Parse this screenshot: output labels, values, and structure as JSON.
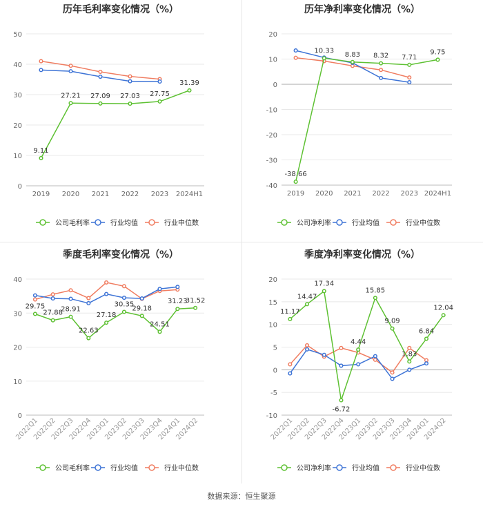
{
  "footer": {
    "source": "数据来源：恒生聚源"
  },
  "colors": {
    "company": "#5ec133",
    "industry_avg": "#3e74d6",
    "industry_median": "#f07d61"
  },
  "chart_data": [
    {
      "id": "annual-gross",
      "type": "line",
      "title": "历年毛利率变化情况（%）",
      "categories": [
        "2019",
        "2020",
        "2021",
        "2022",
        "2023",
        "2024H1"
      ],
      "ylim": [
        0,
        50
      ],
      "yticks": [
        0,
        10,
        20,
        30,
        40,
        50
      ],
      "series": [
        {
          "name": "公司毛利率",
          "values": [
            9.11,
            27.21,
            27.09,
            27.03,
            27.75,
            31.39
          ],
          "labels": [
            "9.11",
            "27.21",
            "27.09",
            "27.03",
            "27.75",
            "31.39"
          ]
        },
        {
          "name": "行业均值",
          "values": [
            38.1,
            37.7,
            35.9,
            34.4,
            34.3,
            null
          ]
        },
        {
          "name": "行业中位数",
          "values": [
            41.0,
            39.5,
            37.5,
            36.0,
            35.1,
            null
          ]
        }
      ]
    },
    {
      "id": "annual-net",
      "type": "line",
      "title": "历年净利率变化情况（%）",
      "categories": [
        "2019",
        "2020",
        "2021",
        "2022",
        "2023",
        "2024H1"
      ],
      "ylim": [
        -40,
        20
      ],
      "yticks": [
        -40,
        -30,
        -20,
        -10,
        0,
        10,
        20
      ],
      "series": [
        {
          "name": "公司净利率",
          "values": [
            -38.66,
            10.33,
            8.83,
            8.32,
            7.71,
            9.75
          ],
          "labels": [
            "-38.66",
            "10.33",
            "8.83",
            "8.32",
            "7.71",
            "9.75"
          ]
        },
        {
          "name": "行业均值",
          "values": [
            13.4,
            10.6,
            8.5,
            2.5,
            0.8,
            null
          ]
        },
        {
          "name": "行业中位数",
          "values": [
            10.5,
            9.2,
            7.3,
            5.7,
            2.7,
            null
          ]
        }
      ]
    },
    {
      "id": "quarterly-gross",
      "type": "line",
      "title": "季度毛利率变化情况（%）",
      "categories": [
        "2022Q1",
        "2022Q2",
        "2022Q3",
        "2022Q4",
        "2023Q1",
        "2023Q2",
        "2023Q3",
        "2023Q4",
        "2024Q1",
        "2024Q2"
      ],
      "ylim": [
        0,
        40
      ],
      "yticks": [
        0,
        10,
        20,
        30,
        40
      ],
      "series": [
        {
          "name": "公司毛利率",
          "values": [
            29.75,
            27.88,
            28.91,
            22.63,
            27.18,
            30.35,
            29.18,
            24.51,
            31.23,
            31.52
          ],
          "labels": [
            "29.75",
            "27.88",
            "28.91",
            "22.63",
            "27.18",
            "30.35",
            "29.18",
            "24.51",
            "31.23",
            "31.52"
          ]
        },
        {
          "name": "行业均值",
          "values": [
            35.2,
            34.3,
            34.2,
            32.9,
            35.6,
            34.5,
            34.3,
            37.1,
            37.7,
            null
          ]
        },
        {
          "name": "行业中位数",
          "values": [
            34.0,
            35.5,
            36.7,
            34.4,
            39.0,
            37.9,
            34.2,
            36.5,
            36.9,
            null
          ]
        }
      ]
    },
    {
      "id": "quarterly-net",
      "type": "line",
      "title": "季度净利率变化情况（%）",
      "categories": [
        "2022Q1",
        "2022Q2",
        "2022Q3",
        "2022Q4",
        "2023Q1",
        "2023Q2",
        "2023Q3",
        "2023Q4",
        "2024Q1",
        "2024Q2"
      ],
      "ylim": [
        -10,
        20
      ],
      "yticks": [
        -10,
        -5,
        0,
        5,
        10,
        15,
        20
      ],
      "series": [
        {
          "name": "公司净利率",
          "values": [
            11.17,
            14.47,
            17.34,
            -6.72,
            4.44,
            15.85,
            9.09,
            1.83,
            6.84,
            12.04
          ],
          "labels": [
            "11.17",
            "14.47",
            "17.34",
            "-6.72",
            "4.44",
            "15.85",
            "9.09",
            "1.83",
            "6.84",
            "12.04"
          ]
        },
        {
          "name": "行业均值",
          "values": [
            -0.8,
            4.5,
            3.3,
            0.9,
            1.2,
            3.0,
            -2.0,
            0.0,
            1.4,
            null
          ]
        },
        {
          "name": "行业中位数",
          "values": [
            1.2,
            5.4,
            2.9,
            4.8,
            3.8,
            2.2,
            -0.6,
            4.8,
            2.1,
            null
          ]
        }
      ]
    }
  ]
}
